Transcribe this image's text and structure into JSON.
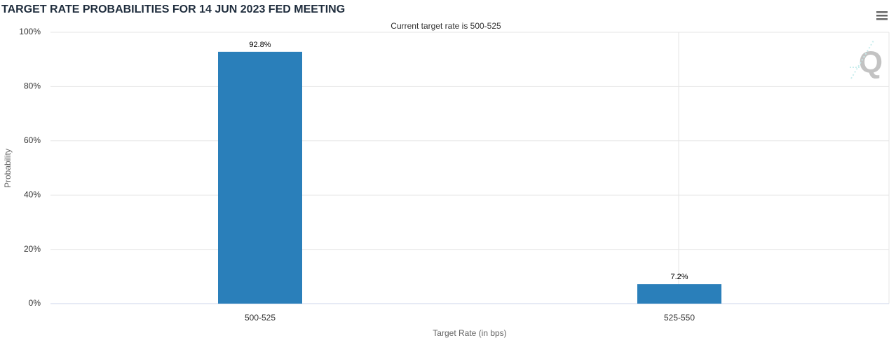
{
  "chart_data": {
    "type": "bar",
    "title": "TARGET RATE PROBABILITIES FOR 14 JUN 2023 FED MEETING",
    "subtitle": "Current target rate is 500-525",
    "y_label": "Probability",
    "x_label": "Target Rate (in bps)",
    "categories": [
      "500-525",
      "525-550"
    ],
    "values": [
      92.8,
      7.2
    ],
    "value_labels": [
      "92.8%",
      "7.2%"
    ],
    "color": "#2a7fba",
    "ylim": [
      0,
      100
    ],
    "yticks": [
      {
        "value": 0,
        "label": "0%"
      },
      {
        "value": 20,
        "label": "20%"
      },
      {
        "value": 40,
        "label": "40%"
      },
      {
        "value": 60,
        "label": "60%"
      },
      {
        "value": 80,
        "label": "80%"
      },
      {
        "value": 100,
        "label": "100%"
      }
    ],
    "grid": true
  }
}
